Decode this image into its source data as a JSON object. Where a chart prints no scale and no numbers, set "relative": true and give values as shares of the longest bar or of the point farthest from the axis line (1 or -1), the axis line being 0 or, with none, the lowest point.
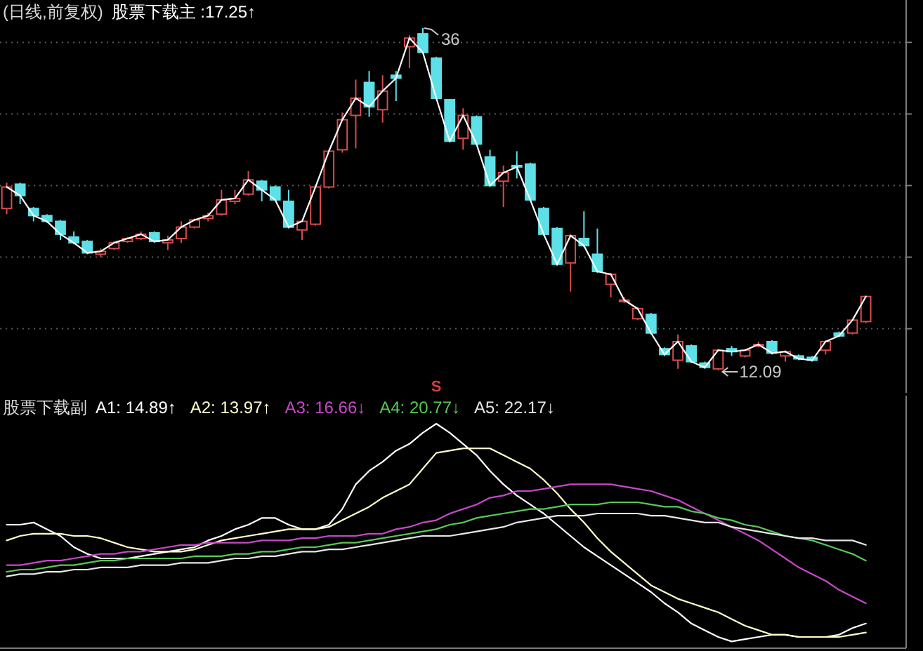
{
  "chart_data": [
    {
      "type": "candlestick",
      "title": "(日线,前复权)",
      "categories": [
        null,
        null,
        null,
        null,
        null,
        null,
        null,
        null,
        null,
        null,
        null,
        null,
        null,
        null,
        null,
        null,
        null,
        null,
        null,
        null,
        null,
        null,
        null,
        null,
        null,
        null,
        null,
        null,
        null,
        null,
        null,
        null,
        null,
        null,
        null,
        null,
        null,
        null,
        null,
        null,
        null,
        null,
        null,
        null,
        null,
        null,
        null,
        null,
        null,
        null,
        null,
        null,
        null,
        null,
        null,
        null,
        null,
        null,
        null,
        null,
        null,
        null,
        null,
        null,
        null
      ],
      "ohlc": [
        [
          23.4,
          25.2,
          23.0,
          24.9
        ],
        [
          25.1,
          25.2,
          23.7,
          24.3
        ],
        [
          23.4,
          23.5,
          22.5,
          22.9
        ],
        [
          22.9,
          23.0,
          22.4,
          22.5
        ],
        [
          22.5,
          22.6,
          21.2,
          21.6
        ],
        [
          21.4,
          21.8,
          20.9,
          21.0
        ],
        [
          21.1,
          21.2,
          20.2,
          20.3
        ],
        [
          20.2,
          20.6,
          20.0,
          20.4
        ],
        [
          20.6,
          21.1,
          20.5,
          21.0
        ],
        [
          21.1,
          21.4,
          21.0,
          21.3
        ],
        [
          21.3,
          21.8,
          21.2,
          21.6
        ],
        [
          21.7,
          21.8,
          21.0,
          21.1
        ],
        [
          21.0,
          21.5,
          20.5,
          21.2
        ],
        [
          21.3,
          22.5,
          21.0,
          22.1
        ],
        [
          22.1,
          22.7,
          22.0,
          22.6
        ],
        [
          22.7,
          23.1,
          22.5,
          22.9
        ],
        [
          23.0,
          24.7,
          22.9,
          24.0
        ],
        [
          23.9,
          24.7,
          23.7,
          24.1
        ],
        [
          24.4,
          26.0,
          24.3,
          25.4
        ],
        [
          25.3,
          25.4,
          23.9,
          24.7
        ],
        [
          24.9,
          25.0,
          23.9,
          24.0
        ],
        [
          23.9,
          24.7,
          22.0,
          22.1
        ],
        [
          21.9,
          22.6,
          21.2,
          22.5
        ],
        [
          22.3,
          25.0,
          22.2,
          24.9
        ],
        [
          24.9,
          27.5,
          24.8,
          27.4
        ],
        [
          27.5,
          30.1,
          27.3,
          29.6
        ],
        [
          29.9,
          32.4,
          27.6,
          31.1
        ],
        [
          32.2,
          33.0,
          29.8,
          30.5
        ],
        [
          30.3,
          32.7,
          29.4,
          31.6
        ],
        [
          32.7,
          33.0,
          30.9,
          32.5
        ],
        [
          34.7,
          35.5,
          33.2,
          35.3
        ],
        [
          35.6,
          36.0,
          34.2,
          34.3
        ],
        [
          33.9,
          34.0,
          31.0,
          31.1
        ],
        [
          31.0,
          31.0,
          28.0,
          28.1
        ],
        [
          28.3,
          30.4,
          27.5,
          29.9
        ],
        [
          29.8,
          29.9,
          27.8,
          27.9
        ],
        [
          27.0,
          27.5,
          24.9,
          25.0
        ],
        [
          25.3,
          26.4,
          23.5,
          25.9
        ],
        [
          26.4,
          27.4,
          25.5,
          26.3
        ],
        [
          26.5,
          26.6,
          23.9,
          24.0
        ],
        [
          23.4,
          23.5,
          21.5,
          21.6
        ],
        [
          22.0,
          22.1,
          19.4,
          19.5
        ],
        [
          19.6,
          21.6,
          17.6,
          21.5
        ],
        [
          21.3,
          23.2,
          20.7,
          20.8
        ],
        [
          20.2,
          22.0,
          18.9,
          19.0
        ],
        [
          18.1,
          18.9,
          17.2,
          18.8
        ],
        [
          16.9,
          17.2,
          16.8,
          17.0
        ],
        [
          15.7,
          16.5,
          15.6,
          16.4
        ],
        [
          16.0,
          16.1,
          14.6,
          14.7
        ],
        [
          13.6,
          13.7,
          13.1,
          13.2
        ],
        [
          12.8,
          14.6,
          12.2,
          14.1
        ],
        [
          13.8,
          13.9,
          12.6,
          12.7
        ],
        [
          12.6,
          12.7,
          12.2,
          12.3
        ],
        [
          12.2,
          13.6,
          12.09,
          13.5
        ],
        [
          13.6,
          13.8,
          13.1,
          13.4
        ],
        [
          13.1,
          13.6,
          13.0,
          13.5
        ],
        [
          13.8,
          14.1,
          13.7,
          13.9
        ],
        [
          14.1,
          14.2,
          13.2,
          13.3
        ],
        [
          13.1,
          13.5,
          12.7,
          13.4
        ],
        [
          13.1,
          13.2,
          12.8,
          12.9
        ],
        [
          13.0,
          13.1,
          12.7,
          12.8
        ],
        [
          13.5,
          14.2,
          13.2,
          14.1
        ],
        [
          14.7,
          14.8,
          14.4,
          14.5
        ],
        [
          14.7,
          15.7,
          14.6,
          15.6
        ],
        [
          15.5,
          17.3,
          15.4,
          17.25
        ]
      ],
      "colors": [
        "#d84c4c",
        "#5ee0e8",
        "#5ee0e8",
        "#5ee0e8",
        "#5ee0e8",
        "#5ee0e8",
        "#5ee0e8",
        "#d84c4c",
        "#d84c4c",
        "#d84c4c",
        "#d84c4c",
        "#5ee0e8",
        "#d84c4c",
        "#d84c4c",
        "#d84c4c",
        "#d84c4c",
        "#d84c4c",
        "#d84c4c",
        "#d84c4c",
        "#5ee0e8",
        "#5ee0e8",
        "#5ee0e8",
        "#d84c4c",
        "#d84c4c",
        "#d84c4c",
        "#d84c4c",
        "#d84c4c",
        "#5ee0e8",
        "#d84c4c",
        "#5ee0e8",
        "#d84c4c",
        "#5ee0e8",
        "#5ee0e8",
        "#5ee0e8",
        "#d84c4c",
        "#5ee0e8",
        "#5ee0e8",
        "#d84c4c",
        "#5ee0e8",
        "#5ee0e8",
        "#5ee0e8",
        "#5ee0e8",
        "#d84c4c",
        "#5ee0e8",
        "#5ee0e8",
        "#d84c4c",
        "#d84c4c",
        "#d84c4c",
        "#5ee0e8",
        "#5ee0e8",
        "#d84c4c",
        "#5ee0e8",
        "#5ee0e8",
        "#d84c4c",
        "#5ee0e8",
        "#d84c4c",
        "#d84c4c",
        "#5ee0e8",
        "#d84c4c",
        "#5ee0e8",
        "#5ee0e8",
        "#d84c4c",
        "#5ee0e8",
        "#d84c4c",
        "#d84c4c"
      ],
      "series": [
        {
          "name": "股票下载主 :17.25↑",
          "type": "line",
          "color": "#ffffff",
          "values": [
            24.9,
            24.3,
            22.9,
            22.5,
            21.6,
            21.0,
            20.3,
            20.4,
            21.0,
            21.3,
            21.6,
            21.1,
            21.2,
            22.1,
            22.6,
            22.9,
            24.0,
            24.1,
            25.4,
            24.7,
            24.0,
            22.1,
            22.5,
            24.9,
            27.4,
            29.6,
            31.1,
            30.5,
            31.6,
            32.5,
            35.3,
            34.3,
            31.1,
            28.1,
            29.9,
            27.9,
            25.0,
            25.9,
            26.3,
            24.0,
            21.6,
            19.5,
            21.5,
            20.8,
            19.0,
            18.8,
            17.0,
            16.4,
            14.7,
            13.2,
            14.1,
            12.7,
            12.3,
            13.5,
            13.4,
            13.5,
            13.9,
            13.3,
            13.4,
            12.9,
            12.8,
            14.1,
            14.5,
            15.6,
            17.25
          ]
        }
      ],
      "yticks": [
        {
          "value": 15,
          "label": null
        },
        {
          "value": 20,
          "label": null
        },
        {
          "value": 25,
          "label": null
        },
        {
          "value": 30,
          "label": null
        },
        {
          "value": 35,
          "label": null
        }
      ],
      "grid": "y",
      "legend": "top left",
      "annotations": [
        "36",
        "12.09"
      ]
    },
    {
      "type": "line",
      "title": "股票下载副",
      "relative": true,
      "categories": [
        null,
        null,
        null,
        null,
        null,
        null,
        null,
        null,
        null,
        null,
        null,
        null,
        null,
        null,
        null,
        null,
        null,
        null,
        null,
        null,
        null,
        null,
        null,
        null,
        null,
        null,
        null,
        null,
        null,
        null,
        null,
        null,
        null,
        null,
        null,
        null,
        null,
        null,
        null,
        null,
        null,
        null,
        null,
        null,
        null,
        null,
        null,
        null,
        null,
        null,
        null,
        null,
        null,
        null,
        null,
        null,
        null,
        null,
        null,
        null,
        null,
        null,
        null,
        null,
        null
      ],
      "series": [
        {
          "name": "A1: 14.89↑",
          "color": "#ffffff",
          "values": [
            0.55,
            0.55,
            0.56,
            0.53,
            0.5,
            0.45,
            0.42,
            0.4,
            0.4,
            0.4,
            0.41,
            0.42,
            0.43,
            0.44,
            0.45,
            0.48,
            0.5,
            0.53,
            0.55,
            0.58,
            0.58,
            0.55,
            0.53,
            0.53,
            0.55,
            0.62,
            0.73,
            0.79,
            0.83,
            0.88,
            0.91,
            0.96,
            1,
            0.96,
            0.91,
            0.86,
            0.79,
            0.73,
            0.68,
            0.64,
            0.6,
            0.55,
            0.5,
            0.45,
            0.41,
            0.37,
            0.33,
            0.29,
            0.25,
            0.2,
            0.16,
            0.11,
            0.08,
            0.05,
            0.03,
            0.04,
            0.05,
            0.06,
            0.06,
            0.05,
            0.05,
            0.05,
            0.06,
            0.09,
            0.11
          ]
        },
        {
          "name": "A2: 13.97↑",
          "color": "#ffffc8",
          "values": [
            0.48,
            0.5,
            0.51,
            0.51,
            0.51,
            0.5,
            0.5,
            0.49,
            0.47,
            0.45,
            0.44,
            0.43,
            0.43,
            0.43,
            0.44,
            0.46,
            0.48,
            0.49,
            0.5,
            0.51,
            0.52,
            0.53,
            0.53,
            0.53,
            0.54,
            0.57,
            0.6,
            0.63,
            0.67,
            0.7,
            0.73,
            0.8,
            0.87,
            0.88,
            0.89,
            0.89,
            0.89,
            0.86,
            0.83,
            0.8,
            0.75,
            0.69,
            0.62,
            0.56,
            0.49,
            0.43,
            0.38,
            0.33,
            0.28,
            0.25,
            0.22,
            0.2,
            0.18,
            0.16,
            0.13,
            0.1,
            0.08,
            0.06,
            0.06,
            0.05,
            0.05,
            0.05,
            0.05,
            0.06,
            0.07
          ]
        },
        {
          "name": "A3: 16.66↓",
          "color": "#c848c8",
          "values": [
            0.37,
            0.37,
            0.38,
            0.39,
            0.39,
            0.4,
            0.41,
            0.42,
            0.42,
            0.43,
            0.43,
            0.44,
            0.45,
            0.46,
            0.46,
            0.47,
            0.47,
            0.47,
            0.47,
            0.48,
            0.48,
            0.48,
            0.49,
            0.49,
            0.5,
            0.5,
            0.5,
            0.51,
            0.51,
            0.53,
            0.54,
            0.56,
            0.57,
            0.6,
            0.62,
            0.64,
            0.67,
            0.68,
            0.7,
            0.7,
            0.71,
            0.72,
            0.73,
            0.73,
            0.73,
            0.73,
            0.72,
            0.71,
            0.7,
            0.68,
            0.66,
            0.63,
            0.6,
            0.57,
            0.54,
            0.51,
            0.48,
            0.44,
            0.4,
            0.36,
            0.33,
            0.3,
            0.26,
            0.23,
            0.2
          ]
        },
        {
          "name": "A4: 20.77↓",
          "color": "#58c858",
          "values": [
            0.34,
            0.35,
            0.35,
            0.36,
            0.37,
            0.37,
            0.38,
            0.39,
            0.39,
            0.4,
            0.4,
            0.4,
            0.4,
            0.4,
            0.41,
            0.41,
            0.41,
            0.42,
            0.42,
            0.43,
            0.43,
            0.44,
            0.45,
            0.45,
            0.46,
            0.47,
            0.47,
            0.48,
            0.49,
            0.5,
            0.51,
            0.52,
            0.53,
            0.55,
            0.56,
            0.58,
            0.59,
            0.6,
            0.61,
            0.62,
            0.62,
            0.63,
            0.64,
            0.64,
            0.64,
            0.65,
            0.65,
            0.65,
            0.64,
            0.63,
            0.63,
            0.61,
            0.6,
            0.58,
            0.57,
            0.55,
            0.54,
            0.52,
            0.5,
            0.49,
            0.48,
            0.46,
            0.44,
            0.42,
            0.39
          ]
        },
        {
          "name": "A5: 22.17↓",
          "color": "#e6e6e6",
          "values": [
            0.32,
            0.33,
            0.33,
            0.34,
            0.34,
            0.35,
            0.35,
            0.36,
            0.36,
            0.36,
            0.37,
            0.37,
            0.37,
            0.38,
            0.38,
            0.38,
            0.39,
            0.4,
            0.4,
            0.41,
            0.41,
            0.42,
            0.43,
            0.43,
            0.44,
            0.44,
            0.45,
            0.46,
            0.47,
            0.48,
            0.49,
            0.5,
            0.5,
            0.5,
            0.51,
            0.52,
            0.53,
            0.54,
            0.56,
            0.57,
            0.58,
            0.59,
            0.59,
            0.59,
            0.6,
            0.6,
            0.6,
            0.6,
            0.59,
            0.59,
            0.58,
            0.57,
            0.56,
            0.56,
            0.54,
            0.53,
            0.52,
            0.51,
            0.5,
            0.49,
            0.49,
            0.48,
            0.48,
            0.48,
            0.46
          ]
        }
      ],
      "legend": "top left",
      "annotations": [
        "S"
      ]
    }
  ]
}
